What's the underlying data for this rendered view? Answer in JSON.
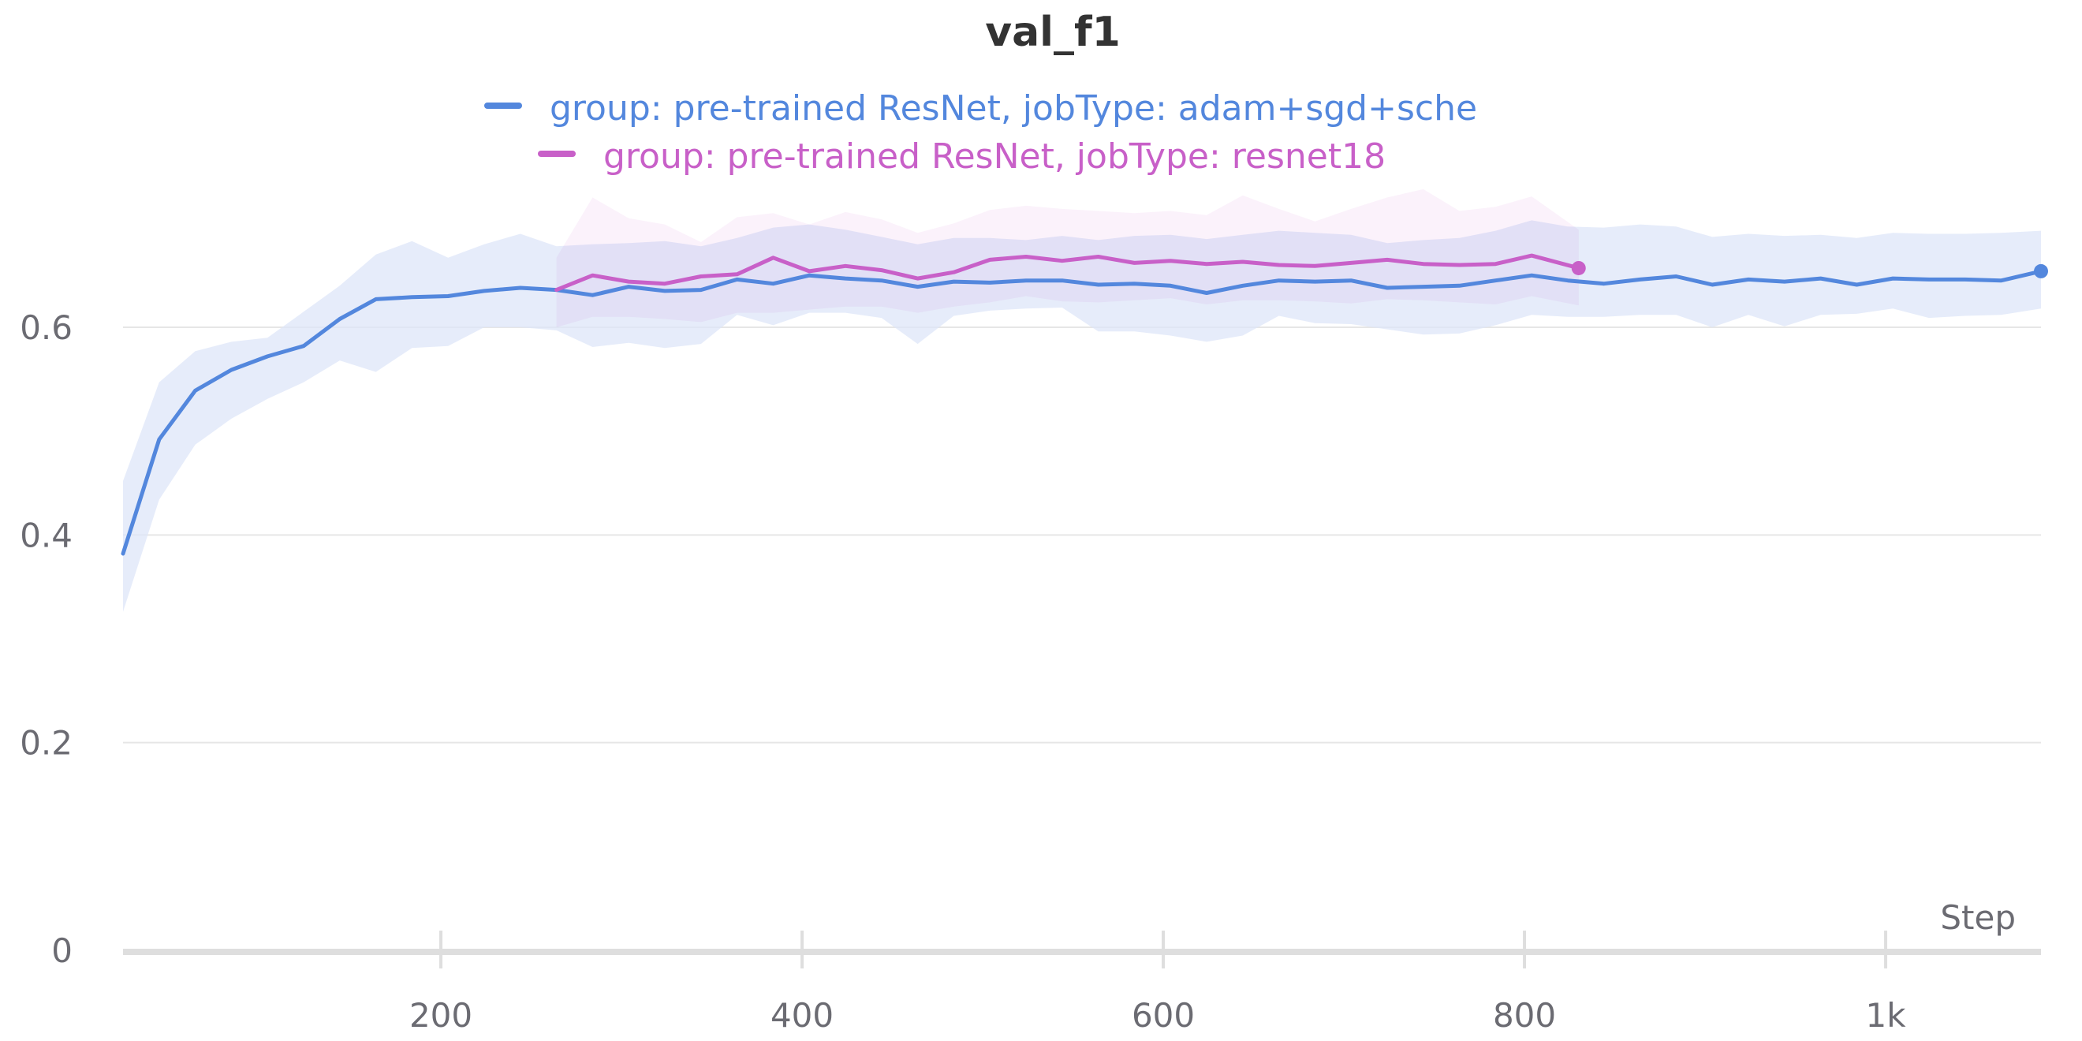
{
  "chart_data": {
    "type": "line",
    "title": "val_f1",
    "xlabel": "Step",
    "ylabel": "",
    "xlim": [
      24,
      1086
    ],
    "ylim": [
      0,
      0.7
    ],
    "grid": true,
    "legend_position": "top-center",
    "x_ticks": [
      200,
      400,
      600,
      800,
      1000
    ],
    "x_tick_labels": [
      "200",
      "400",
      "600",
      "800",
      "1k"
    ],
    "y_ticks": [
      0,
      0.2,
      0.4,
      0.6
    ],
    "y_tick_labels": [
      "0",
      "0.2",
      "0.4",
      "0.6"
    ],
    "series": [
      {
        "name": "group: pre-trained ResNet, jobType: adam+sgd+sche",
        "color": "#5387dd",
        "band_color": "#dde6f8",
        "x": [
          24,
          44,
          64,
          84,
          104,
          124,
          144,
          164,
          184,
          204,
          224,
          244,
          264,
          284,
          304,
          324,
          344,
          364,
          384,
          404,
          424,
          444,
          464,
          484,
          504,
          524,
          544,
          564,
          584,
          604,
          624,
          644,
          664,
          684,
          704,
          724,
          744,
          764,
          784,
          804,
          824,
          844,
          864,
          884,
          904,
          924,
          944,
          964,
          984,
          1004,
          1024,
          1044,
          1064,
          1086
        ],
        "y": [
          0.382,
          0.492,
          0.539,
          0.559,
          0.572,
          0.582,
          0.608,
          0.627,
          0.629,
          0.63,
          0.635,
          0.638,
          0.636,
          0.631,
          0.639,
          0.635,
          0.636,
          0.646,
          0.642,
          0.65,
          0.647,
          0.645,
          0.639,
          0.644,
          0.643,
          0.645,
          0.645,
          0.641,
          0.642,
          0.64,
          0.633,
          0.64,
          0.645,
          0.644,
          0.645,
          0.638,
          0.639,
          0.64,
          0.645,
          0.65,
          0.645,
          0.642,
          0.646,
          0.649,
          0.641,
          0.646,
          0.644,
          0.647,
          0.641,
          0.647,
          0.646,
          0.646,
          0.645,
          0.654
        ],
        "upper": [
          0.452,
          0.547,
          0.577,
          0.586,
          0.59,
          0.615,
          0.64,
          0.67,
          0.683,
          0.667,
          0.68,
          0.69,
          0.678,
          0.68,
          0.681,
          0.683,
          0.678,
          0.686,
          0.696,
          0.699,
          0.694,
          0.687,
          0.68,
          0.686,
          0.686,
          0.684,
          0.688,
          0.684,
          0.688,
          0.689,
          0.685,
          0.689,
          0.693,
          0.691,
          0.689,
          0.681,
          0.684,
          0.686,
          0.693,
          0.703,
          0.697,
          0.696,
          0.699,
          0.697,
          0.687,
          0.69,
          0.688,
          0.689,
          0.686,
          0.691,
          0.69,
          0.69,
          0.691,
          0.693
        ],
        "lower": [
          0.326,
          0.434,
          0.487,
          0.512,
          0.531,
          0.547,
          0.568,
          0.557,
          0.58,
          0.582,
          0.6,
          0.6,
          0.597,
          0.581,
          0.585,
          0.58,
          0.584,
          0.612,
          0.602,
          0.614,
          0.614,
          0.609,
          0.584,
          0.611,
          0.616,
          0.618,
          0.619,
          0.596,
          0.596,
          0.592,
          0.586,
          0.592,
          0.611,
          0.604,
          0.603,
          0.598,
          0.593,
          0.594,
          0.602,
          0.612,
          0.61,
          0.61,
          0.612,
          0.612,
          0.6,
          0.612,
          0.601,
          0.612,
          0.613,
          0.618,
          0.609,
          0.611,
          0.612,
          0.618
        ]
      },
      {
        "name": "group: pre-trained ResNet, jobType: resnet18",
        "color": "#c860c8",
        "band_color": "#f7e8f7",
        "x": [
          264,
          284,
          304,
          324,
          344,
          364,
          384,
          404,
          424,
          444,
          464,
          484,
          504,
          524,
          544,
          564,
          584,
          604,
          624,
          644,
          664,
          684,
          704,
          724,
          744,
          764,
          784,
          804,
          830
        ],
        "y": [
          0.636,
          0.65,
          0.644,
          0.642,
          0.649,
          0.651,
          0.667,
          0.654,
          0.659,
          0.655,
          0.647,
          0.653,
          0.665,
          0.668,
          0.664,
          0.668,
          0.662,
          0.664,
          0.661,
          0.663,
          0.66,
          0.659,
          0.662,
          0.665,
          0.661,
          0.66,
          0.661,
          0.669,
          0.657
        ],
        "upper": [
          0.667,
          0.725,
          0.705,
          0.699,
          0.682,
          0.706,
          0.71,
          0.699,
          0.711,
          0.704,
          0.691,
          0.7,
          0.713,
          0.717,
          0.714,
          0.712,
          0.71,
          0.712,
          0.708,
          0.727,
          0.714,
          0.702,
          0.714,
          0.725,
          0.733,
          0.712,
          0.716,
          0.726,
          0.694
        ],
        "lower": [
          0.6,
          0.61,
          0.61,
          0.608,
          0.605,
          0.614,
          0.614,
          0.617,
          0.62,
          0.62,
          0.614,
          0.62,
          0.624,
          0.63,
          0.625,
          0.624,
          0.626,
          0.628,
          0.622,
          0.626,
          0.626,
          0.625,
          0.623,
          0.627,
          0.626,
          0.624,
          0.622,
          0.63,
          0.621
        ]
      }
    ]
  }
}
